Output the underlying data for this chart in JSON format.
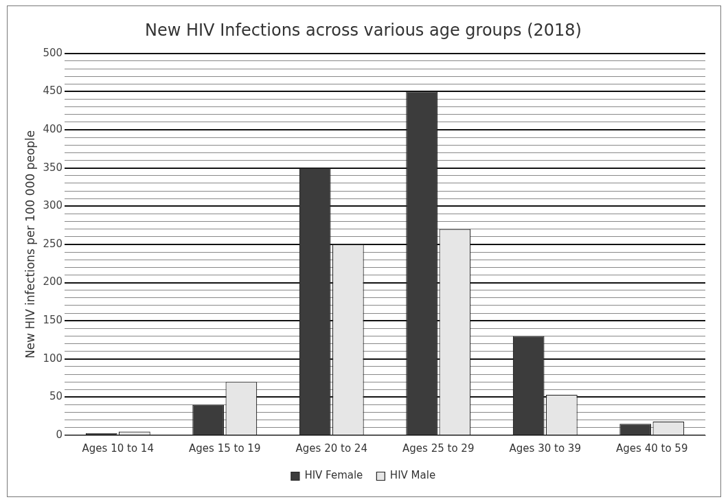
{
  "chart_data": {
    "type": "bar",
    "title": "New HIV Infections across various age groups (2018)",
    "ylabel": "New HIV infections per 100 000 people",
    "categories": [
      "Ages 10 to 14",
      "Ages 15 to 19",
      "Ages 20 to 24",
      "Ages 25 to 29",
      "Ages 30 to 39",
      "Ages 40 to 59"
    ],
    "series": [
      {
        "name": "HIV Female",
        "color": "#3c3c3c",
        "values": [
          3,
          40,
          350,
          450,
          130,
          15
        ]
      },
      {
        "name": "HIV Male",
        "color": "#e6e6e6",
        "values": [
          5,
          70,
          250,
          270,
          53,
          18
        ]
      }
    ],
    "ylim": [
      0,
      500
    ],
    "yticks": [
      0,
      {
        "value": 10,
        "label": null
      },
      {
        "value": 20,
        "label": null
      },
      {
        "value": 30,
        "label": null
      },
      {
        "value": 40,
        "label": null
      },
      50,
      {
        "value": 60,
        "label": null
      },
      {
        "value": 70,
        "label": null
      },
      {
        "value": 80,
        "label": null
      },
      {
        "value": 90,
        "label": null
      },
      100,
      {
        "value": 110,
        "label": null
      },
      {
        "value": 120,
        "label": null
      },
      {
        "value": 130,
        "label": null
      },
      {
        "value": 140,
        "label": null
      },
      150,
      {
        "value": 160,
        "label": null
      },
      {
        "value": 170,
        "label": null
      },
      {
        "value": 180,
        "label": null
      },
      {
        "value": 190,
        "label": null
      },
      200,
      {
        "value": 210,
        "label": null
      },
      {
        "value": 220,
        "label": null
      },
      {
        "value": 230,
        "label": null
      },
      {
        "value": 240,
        "label": null
      },
      250,
      {
        "value": 260,
        "label": null
      },
      {
        "value": 270,
        "label": null
      },
      {
        "value": 280,
        "label": null
      },
      {
        "value": 290,
        "label": null
      },
      300,
      {
        "value": 310,
        "label": null
      },
      {
        "value": 320,
        "label": null
      },
      {
        "value": 330,
        "label": null
      },
      {
        "value": 340,
        "label": null
      },
      350,
      {
        "value": 360,
        "label": null
      },
      {
        "value": 370,
        "label": null
      },
      {
        "value": 380,
        "label": null
      },
      {
        "value": 390,
        "label": null
      },
      400,
      {
        "value": 410,
        "label": null
      },
      {
        "value": 420,
        "label": null
      },
      {
        "value": 430,
        "label": null
      },
      {
        "value": 440,
        "label": null
      },
      450,
      {
        "value": 460,
        "label": null
      },
      {
        "value": 470,
        "label": null
      },
      {
        "value": 480,
        "label": null
      },
      {
        "value": 490,
        "label": null
      },
      500
    ],
    "grid": "y",
    "legend": "bottom"
  }
}
